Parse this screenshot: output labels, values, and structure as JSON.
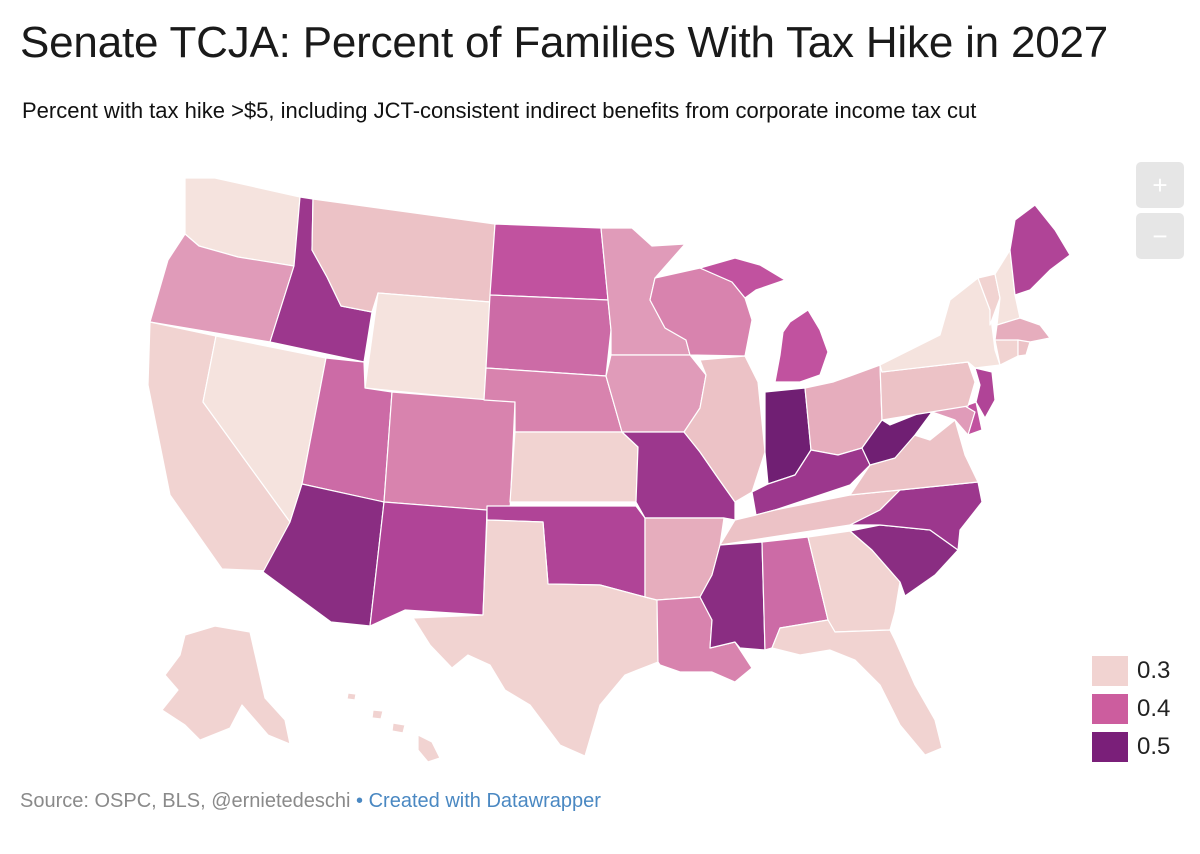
{
  "title": "Senate TCJA: Percent of Families With Tax Hike in 2027",
  "subtitle": "Percent with tax hike >$5, including JCT-consistent indirect benefits from corporate income tax cut",
  "zoom": {
    "in_label": "+",
    "out_label": "−"
  },
  "legend": {
    "items": [
      {
        "label": "0.3",
        "color": "#f1d3d1"
      },
      {
        "label": "0.4",
        "color": "#cc5d9e"
      },
      {
        "label": "0.5",
        "color": "#7a1f79"
      }
    ]
  },
  "footer": {
    "source": "Source: OSPC, BLS, @ernietedeschi",
    "separator": "•",
    "credit": "Created with Datawrapper"
  },
  "colors": {
    "v28": "#f5e3de",
    "v30": "#f1d3d1",
    "v32": "#ecc2c6",
    "v34": "#e6adbd",
    "v36": "#e09bb9",
    "v38": "#d883ae",
    "v40": "#cc6ba6",
    "v42": "#c1529f",
    "v44": "#b04497",
    "v46": "#9c378d",
    "v48": "#8a2d82",
    "v50": "#701f73"
  },
  "states": {
    "WA": 0.29,
    "OR": 0.36,
    "CA": 0.31,
    "NV": 0.28,
    "ID": 0.47,
    "MT": 0.32,
    "WY": 0.28,
    "UT": 0.4,
    "AZ": 0.48,
    "CO": 0.39,
    "NM": 0.44,
    "ND": 0.43,
    "SD": 0.4,
    "NE": 0.39,
    "KS": 0.3,
    "OK": 0.44,
    "TX": 0.3,
    "MN": 0.37,
    "IA": 0.36,
    "MO": 0.46,
    "AR": 0.34,
    "LA": 0.39,
    "WI": 0.39,
    "IL": 0.33,
    "MI": 0.42,
    "IN": 0.5,
    "OH": 0.35,
    "KY": 0.46,
    "TN": 0.33,
    "MS": 0.48,
    "AL": 0.41,
    "GA": 0.3,
    "FL": 0.31,
    "SC": 0.48,
    "NC": 0.46,
    "VA": 0.33,
    "WV": 0.5,
    "PA": 0.33,
    "NY": 0.29,
    "VT": 0.31,
    "NH": 0.28,
    "ME": 0.44,
    "MA": 0.34,
    "CT": 0.3,
    "RI": 0.32,
    "NJ": 0.44,
    "DE": 0.42,
    "MD": 0.36,
    "AK": 0.31,
    "HI": 0.31
  }
}
